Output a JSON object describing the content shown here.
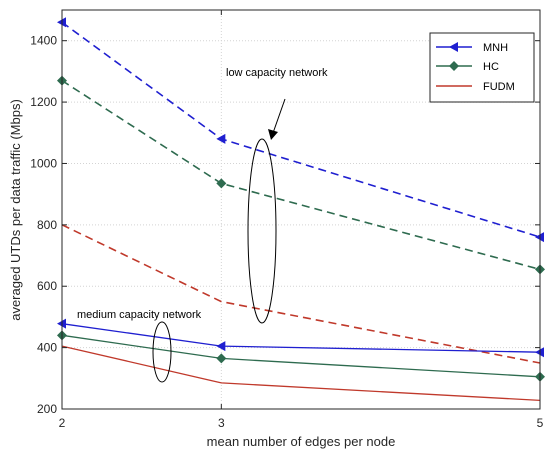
{
  "chart_data": {
    "type": "line",
    "title": "",
    "xlabel": "mean number of edges per node",
    "ylabel": "averaged UTDs per data traffic (Mbps)",
    "x": [
      2,
      3,
      5
    ],
    "xlim": [
      2,
      5
    ],
    "ylim": [
      200,
      1500
    ],
    "xticks": [
      2,
      3,
      5
    ],
    "yticks": [
      200,
      400,
      600,
      800,
      1000,
      1200,
      1400
    ],
    "grid": true,
    "legend_position": "top-right",
    "legend": [
      {
        "name": "MNH",
        "color": "#1f1fd0",
        "marker": "left-triangle"
      },
      {
        "name": "HC",
        "color": "#2e6b4f",
        "marker": "diamond"
      },
      {
        "name": "FUDM",
        "color": "#c0392b",
        "marker": "none"
      }
    ],
    "series": [
      {
        "name": "MNH",
        "network": "low capacity network",
        "line_style": "dashed",
        "values": [
          1460,
          1080,
          760
        ]
      },
      {
        "name": "HC",
        "network": "low capacity network",
        "line_style": "dashed",
        "values": [
          1270,
          935,
          655
        ]
      },
      {
        "name": "FUDM",
        "network": "low capacity network",
        "line_style": "dashed",
        "values": [
          800,
          550,
          350
        ]
      },
      {
        "name": "MNH",
        "network": "medium capacity network",
        "line_style": "solid",
        "values": [
          478,
          405,
          385
        ]
      },
      {
        "name": "HC",
        "network": "medium capacity network",
        "line_style": "solid",
        "values": [
          440,
          365,
          305
        ]
      },
      {
        "name": "FUDM",
        "network": "medium capacity network",
        "line_style": "solid",
        "values": [
          405,
          285,
          228
        ]
      }
    ],
    "annotations": [
      {
        "text": "low capacity network"
      },
      {
        "text": "medium capacity network"
      }
    ]
  }
}
